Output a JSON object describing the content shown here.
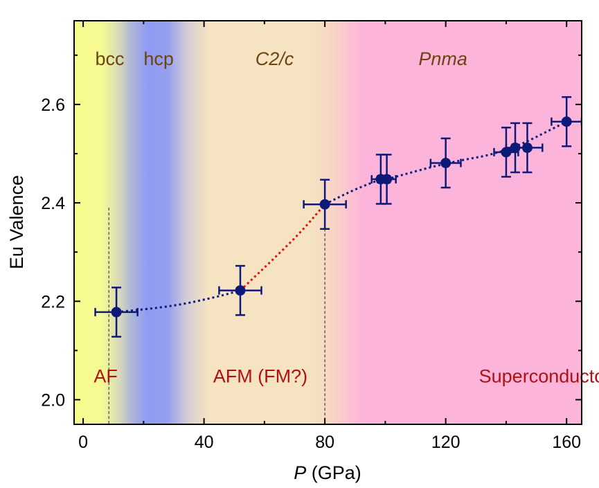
{
  "chart_data": {
    "type": "scatter",
    "xlabel_italic": "P",
    "xlabel_rest": " (GPa)",
    "ylabel": "Eu Valence",
    "xlim": [
      -3,
      165
    ],
    "ylim": [
      1.95,
      2.77
    ],
    "xticks": [
      0,
      40,
      80,
      120,
      160
    ],
    "xtick_labels": [
      "0",
      "40",
      "80",
      "120",
      "160"
    ],
    "yticks": [
      2.0,
      2.2,
      2.4,
      2.6
    ],
    "ytick_labels": [
      "2.0",
      "2.2",
      "2.4",
      "2.6"
    ],
    "series": [
      {
        "color": "#0d1a7a",
        "points": [
          {
            "x": 11,
            "y": 2.178,
            "xerr": 7,
            "yerr": 0.05
          },
          {
            "x": 52,
            "y": 2.222,
            "xerr": 7,
            "yerr": 0.05
          },
          {
            "x": 80,
            "y": 2.397,
            "xerr": 7,
            "yerr": 0.05
          },
          {
            "x": 98.5,
            "y": 2.448,
            "xerr": 3,
            "yerr": 0.05
          },
          {
            "x": 100.5,
            "y": 2.448,
            "xerr": 3,
            "yerr": 0.05
          },
          {
            "x": 120,
            "y": 2.481,
            "xerr": 5,
            "yerr": 0.05
          },
          {
            "x": 140,
            "y": 2.503,
            "xerr": 4,
            "yerr": 0.05
          },
          {
            "x": 143,
            "y": 2.512,
            "xerr": 3,
            "yerr": 0.05
          },
          {
            "x": 147,
            "y": 2.512,
            "xerr": 5,
            "yerr": 0.05
          },
          {
            "x": 160,
            "y": 2.565,
            "xerr": 5,
            "yerr": 0.05
          }
        ]
      }
    ],
    "connectors": [
      {
        "color": "#0d1a7a",
        "points": [
          [
            11,
            2.178
          ],
          [
            30,
            2.19
          ],
          [
            45,
            2.21
          ],
          [
            52,
            2.222
          ]
        ]
      },
      {
        "color": "#e01010",
        "points": [
          [
            52,
            2.222
          ],
          [
            62,
            2.28
          ],
          [
            72,
            2.34
          ],
          [
            80,
            2.397
          ]
        ]
      },
      {
        "color": "#0d1a7a",
        "points": [
          [
            80,
            2.397
          ],
          [
            89,
            2.425
          ],
          [
            98.5,
            2.448
          ]
        ]
      },
      {
        "color": "#0d1a7a",
        "points": [
          [
            100.5,
            2.448
          ],
          [
            120,
            2.481
          ],
          [
            140,
            2.503
          ],
          [
            160,
            2.565
          ]
        ]
      }
    ],
    "vlines": [
      {
        "x": 8.5,
        "y_top": 2.39
      },
      {
        "x": 80,
        "y_top": 2.397
      }
    ],
    "phases": [
      {
        "label": "bcc",
        "italic": false,
        "x": 4,
        "y": 2.68,
        "color": "#6b4410"
      },
      {
        "label": "hcp",
        "italic": false,
        "x": 20,
        "y": 2.68,
        "color": "#6b4410"
      },
      {
        "label": "C2/c",
        "italic": true,
        "x": 57,
        "y": 2.68,
        "color": "#6b4410"
      },
      {
        "label": "Pnma",
        "italic": true,
        "x": 111,
        "y": 2.68,
        "color": "#6b4410"
      }
    ],
    "regions": [
      {
        "label": "AF",
        "x": 3.5,
        "y": 2.035,
        "color": "#b21010"
      },
      {
        "label": "AFM (FM?)",
        "x": 43,
        "y": 2.035,
        "color": "#b21010"
      },
      {
        "label": "Superconductor?",
        "x": 131,
        "y": 2.035,
        "color": "#b21010"
      }
    ],
    "background_colors": {
      "bcc": "#f8fb8c",
      "hcp": "#8e9bf5",
      "c2c": "#f6e3c1",
      "pnma": "#fdb4da"
    }
  }
}
